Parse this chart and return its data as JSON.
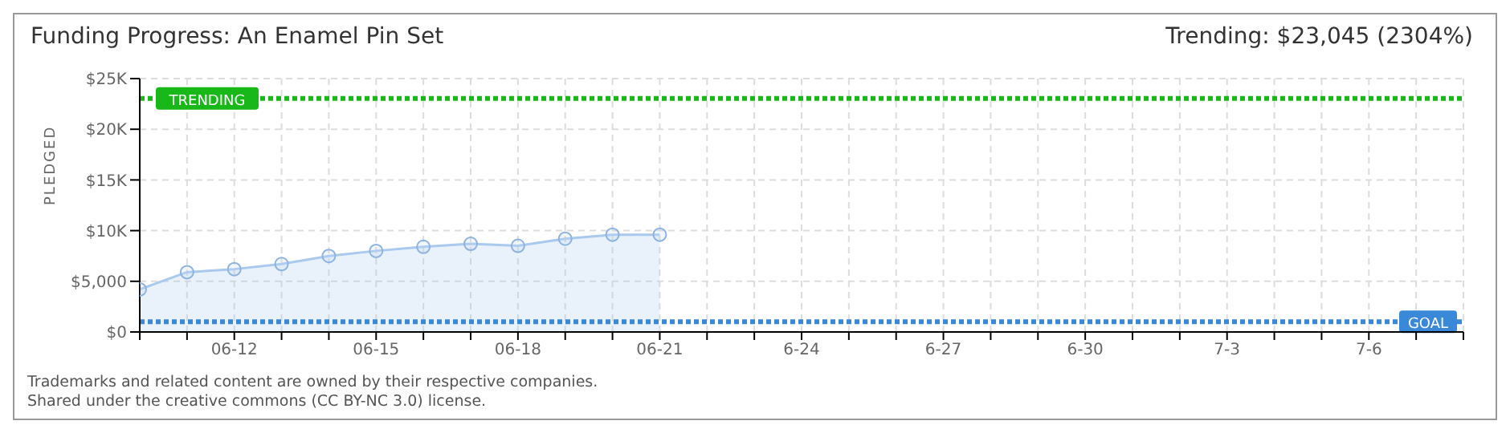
{
  "chart_data": {
    "type": "area",
    "title": "Funding Progress: An Enamel Pin Set",
    "subtitle": "Trending: $23,045 (2304%)",
    "ylabel": "PLEDGED",
    "categories": [
      null,
      null,
      "06-12",
      null,
      null,
      "06-15",
      null,
      null,
      "06-18",
      null,
      null,
      "06-21",
      null,
      null,
      "6-24",
      null,
      null,
      "6-27",
      null,
      null,
      "6-30",
      null,
      null,
      "7-3",
      null,
      null,
      "7-6",
      null,
      null
    ],
    "series": [
      {
        "color": "#a9c9ef",
        "values": [
          4200,
          5900,
          6200,
          6700,
          7500,
          8000,
          8400,
          8700,
          8500,
          9200,
          9600,
          9600,
          null,
          null,
          null,
          null,
          null,
          null,
          null,
          null,
          null,
          null,
          null,
          null,
          null,
          null,
          null,
          null,
          null
        ]
      }
    ],
    "ylim": [
      0,
      25000
    ],
    "yticks": [
      {
        "value": 0,
        "label": "$0"
      },
      {
        "value": 5000,
        "label": "$5,000"
      },
      {
        "value": 10000,
        "label": "$10K"
      },
      {
        "value": 15000,
        "label": "$15K"
      },
      {
        "value": 20000,
        "label": "$20K"
      },
      {
        "value": 25000,
        "label": "$25K"
      }
    ],
    "ref_lines": [
      {
        "axis": "y",
        "value": 23045,
        "label": "TRENDING",
        "color": "#18b818",
        "line_style": "dotted"
      },
      {
        "axis": "y",
        "value": 1000,
        "label": "GOAL",
        "color": "#3a88d8",
        "line_style": "dotted"
      }
    ],
    "grid": true,
    "marker": "circle",
    "annotations": [
      "Trademarks and related content are owned by their respective companies.",
      "Shared under the creative commons (CC BY-NC 3.0) license."
    ]
  }
}
